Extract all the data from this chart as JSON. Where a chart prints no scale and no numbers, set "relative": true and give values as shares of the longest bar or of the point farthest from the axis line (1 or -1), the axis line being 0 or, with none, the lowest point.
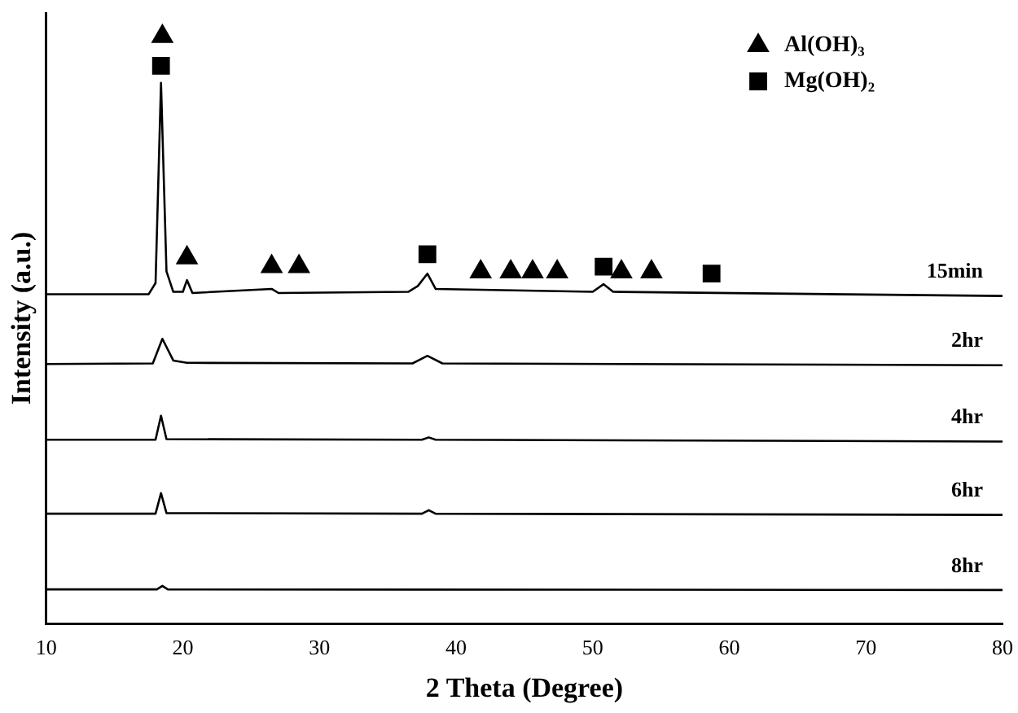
{
  "chart_data": {
    "type": "line",
    "xlabel": "2 Theta (Degree)",
    "ylabel": "Intensity (a.u.)",
    "relative": true,
    "xlim": [
      10,
      80
    ],
    "xticks": [
      10,
      20,
      30,
      40,
      50,
      60,
      70,
      80
    ],
    "tick_labels": "x",
    "grid": false,
    "legend": "top right",
    "marker": "none",
    "line_style": "solid",
    "series": [
      {
        "name": "15min",
        "color": "#000000",
        "x": [
          10,
          17.5,
          18.0,
          18.4,
          18.8,
          19.3,
          20.0,
          20.3,
          20.7,
          26.5,
          27,
          36.5,
          37.2,
          37.9,
          38.5,
          50,
          50.8,
          51.5,
          80
        ],
        "values": [
          0.561,
          0.561,
          0.58,
          0.921,
          0.6,
          0.565,
          0.565,
          0.585,
          0.563,
          0.57,
          0.563,
          0.565,
          0.575,
          0.596,
          0.57,
          0.565,
          0.578,
          0.565,
          0.558
        ]
      },
      {
        "name": "2hr",
        "color": "#000000",
        "x": [
          10,
          17.8,
          18.5,
          19.3,
          20.3,
          36.8,
          37.9,
          39,
          80
        ],
        "values": [
          0.442,
          0.443,
          0.485,
          0.448,
          0.444,
          0.443,
          0.456,
          0.443,
          0.44
        ]
      },
      {
        "name": "4hr",
        "color": "#000000",
        "x": [
          10,
          18.0,
          18.4,
          18.8,
          37.5,
          38,
          38.5,
          80
        ],
        "values": [
          0.313,
          0.313,
          0.354,
          0.314,
          0.313,
          0.317,
          0.313,
          0.31
        ]
      },
      {
        "name": "6hr",
        "color": "#000000",
        "x": [
          10,
          18.0,
          18.4,
          18.8,
          37.5,
          38,
          38.5,
          80
        ],
        "values": [
          0.187,
          0.187,
          0.222,
          0.188,
          0.187,
          0.193,
          0.187,
          0.185
        ]
      },
      {
        "name": "8hr",
        "color": "#000000",
        "x": [
          10,
          18.1,
          18.5,
          18.9,
          80
        ],
        "values": [
          0.058,
          0.058,
          0.064,
          0.058,
          0.057
        ]
      },
      {
        "name": "Al(OH)₃",
        "type": "scatter",
        "marker": "triangle",
        "color": "#000000",
        "x": [
          18.5,
          20.3,
          26.5,
          28.5,
          41.8,
          44,
          45.6,
          47.4,
          52.1,
          54.3
        ],
        "values": [
          1.0,
          0.623,
          0.608,
          0.608,
          0.599,
          0.599,
          0.599,
          0.599,
          0.599,
          0.599
        ]
      },
      {
        "name": "Mg(OH)₂",
        "type": "scatter",
        "marker": "square",
        "color": "#000000",
        "x": [
          18.4,
          37.9,
          50.8,
          58.7
        ],
        "values": [
          0.95,
          0.629,
          0.608,
          0.596
        ]
      }
    ]
  }
}
